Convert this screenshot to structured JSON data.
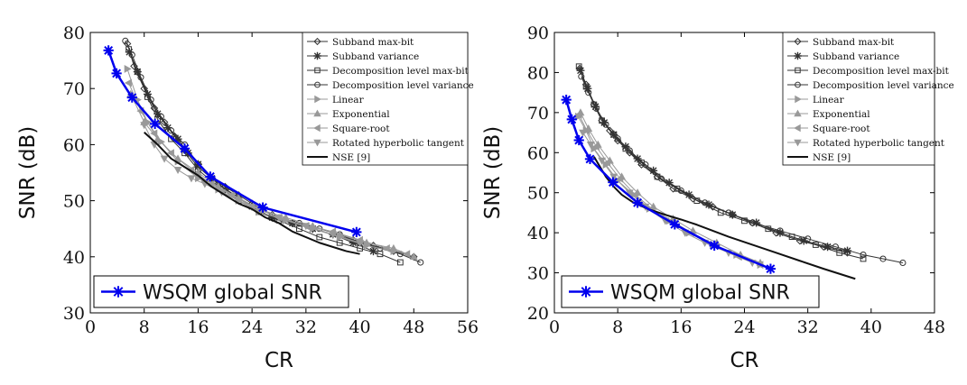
{
  "chart_data": [
    {
      "type": "line",
      "xlabel": "CR",
      "ylabel": "SNR (dB)",
      "xlim": [
        0,
        56
      ],
      "ylim": [
        30,
        80
      ],
      "xticks": [
        0,
        8,
        16,
        24,
        32,
        40,
        48,
        56
      ],
      "yticks": [
        30,
        40,
        50,
        60,
        70,
        80
      ],
      "legend_position": "top-right",
      "series": [
        {
          "name": "Subband max-bit",
          "color": "#333333",
          "width": 1,
          "marker": "diamond",
          "x": [
            5.5,
            6.5,
            8,
            9.5,
            11,
            12.5,
            14,
            16,
            18,
            20,
            22,
            24,
            27,
            30,
            33,
            36,
            39,
            42,
            45,
            48
          ],
          "y": [
            78,
            74,
            70,
            66.5,
            64,
            61.5,
            59,
            56,
            54,
            52.5,
            51,
            49.5,
            47.5,
            46,
            45,
            44,
            43,
            42,
            41,
            40
          ]
        },
        {
          "name": "Subband variance",
          "color": "#333333",
          "width": 1,
          "marker": "star",
          "x": [
            5.8,
            7,
            8.5,
            10,
            11.5,
            13,
            14.5,
            16,
            18,
            20,
            22,
            24,
            27,
            30,
            33,
            36,
            39,
            42
          ],
          "y": [
            76.5,
            73,
            69,
            65.5,
            63,
            61,
            58.5,
            56.5,
            54,
            52,
            50.5,
            49,
            47,
            46,
            45,
            44,
            42.5,
            41
          ]
        },
        {
          "name": "Decomposition level max-bit",
          "color": "#333333",
          "width": 1,
          "marker": "square",
          "x": [
            5.7,
            7,
            8.5,
            10,
            12,
            14,
            16,
            19,
            22,
            25,
            28,
            31,
            34,
            37,
            40,
            43,
            46
          ],
          "y": [
            77,
            73,
            68.5,
            64.5,
            61,
            58.5,
            55.5,
            52.5,
            50,
            48,
            46.5,
            45,
            43.5,
            42.5,
            41.5,
            40.5,
            39
          ]
        },
        {
          "name": "Decomposition level variance",
          "color": "#333333",
          "width": 1,
          "marker": "circle",
          "x": [
            5.2,
            6.2,
            7.5,
            9,
            10.5,
            12,
            14,
            16,
            19,
            22,
            25,
            28,
            31,
            34,
            37,
            40,
            43,
            46,
            49
          ],
          "y": [
            78.5,
            76,
            72,
            68,
            65,
            62.5,
            60,
            56.5,
            53,
            50.5,
            48.5,
            47,
            46,
            45,
            44,
            42.5,
            41.5,
            40.5,
            39
          ]
        },
        {
          "name": "Linear",
          "color": "#999999",
          "width": 1,
          "marker": "tri-right",
          "x": [
            5.5,
            7,
            8.5,
            10.5,
            13,
            16,
            19,
            22,
            25,
            29,
            33,
            37,
            41,
            45
          ],
          "y": [
            73.5,
            68,
            64,
            60.5,
            57,
            54,
            52,
            50,
            48,
            46.5,
            45,
            43.5,
            42,
            41
          ]
        },
        {
          "name": "Exponential",
          "color": "#999999",
          "width": 1,
          "marker": "tri-up",
          "x": [
            6,
            8,
            10,
            13,
            16,
            19,
            22,
            25,
            29,
            33,
            37,
            41,
            45,
            48
          ],
          "y": [
            69,
            64,
            61,
            57.5,
            55,
            52.5,
            50.5,
            48.5,
            47,
            45.5,
            44,
            42.5,
            41.5,
            40
          ]
        },
        {
          "name": "Square-root",
          "color": "#999999",
          "width": 1,
          "marker": "tri-left",
          "x": [
            5.7,
            7.5,
            9.5,
            12,
            15,
            18,
            21,
            24,
            28,
            32,
            36,
            40,
            44,
            47
          ],
          "y": [
            71,
            66,
            62,
            58.5,
            55.5,
            53,
            51,
            49,
            47,
            45.5,
            44.5,
            43,
            41.5,
            40.5
          ]
        },
        {
          "name": "Rotated hyperbolic tangent",
          "color": "#999999",
          "width": 1,
          "marker": "tri-down",
          "x": [
            8,
            9.5,
            11,
            13,
            15,
            17,
            19.5,
            22,
            25,
            28,
            32,
            36,
            40
          ],
          "y": [
            63.5,
            60,
            57.5,
            55.5,
            54,
            53,
            51.5,
            50,
            48.5,
            47,
            45.5,
            44,
            42.5
          ]
        },
        {
          "name": "NSE [9]",
          "color": "#111111",
          "width": 2,
          "marker": "none",
          "x": [
            8,
            10,
            12,
            14,
            16,
            18,
            20,
            22,
            24,
            26,
            28,
            30,
            34,
            38,
            40
          ],
          "y": [
            62.2,
            60,
            57.5,
            56,
            54.5,
            52.5,
            51,
            49.5,
            48.5,
            47,
            46,
            44.5,
            42.5,
            41,
            40.5
          ]
        },
        {
          "name": "WSQM global SNR",
          "color": "#0000ee",
          "width": 2.5,
          "marker": "star",
          "x": [
            2.7,
            3.9,
            6.2,
            9.6,
            14,
            17.8,
            25.6,
            39.5
          ],
          "y": [
            76.8,
            72.7,
            68.4,
            63.7,
            59.3,
            54.3,
            48.8,
            44.4
          ]
        }
      ]
    },
    {
      "type": "line",
      "xlabel": "CR",
      "ylabel": "SNR (dB)",
      "xlim": [
        0,
        48
      ],
      "ylim": [
        20,
        90
      ],
      "xticks": [
        0,
        8,
        16,
        24,
        32,
        40,
        48
      ],
      "yticks": [
        20,
        30,
        40,
        50,
        60,
        70,
        80,
        90
      ],
      "legend_position": "top-right",
      "series": [
        {
          "name": "Subband max-bit",
          "color": "#333333",
          "width": 1,
          "marker": "diamond",
          "x": [
            3.2,
            4,
            5,
            6,
            7,
            8,
            9.5,
            11,
            13,
            15,
            17.5,
            20,
            22.5,
            25,
            28,
            31,
            34,
            37
          ],
          "y": [
            81,
            77,
            72,
            68,
            65.5,
            63,
            60,
            57,
            54,
            51,
            48.5,
            46.5,
            44.5,
            42.5,
            40,
            38,
            36.5,
            35
          ]
        },
        {
          "name": "Subband variance",
          "color": "#333333",
          "width": 1,
          "marker": "star",
          "x": [
            3.3,
            4.2,
            5.2,
            6.3,
            7.5,
            9,
            10.5,
            12.5,
            14.5,
            17,
            19.5,
            22.5,
            25.5,
            28.5,
            31.5,
            34.5,
            37
          ],
          "y": [
            80.5,
            76,
            71.5,
            67.5,
            64.5,
            61.5,
            58.5,
            55.5,
            52.5,
            49.5,
            47,
            44.5,
            42.5,
            40,
            38,
            36.5,
            35.5
          ]
        },
        {
          "name": "Decomposition level max-bit",
          "color": "#333333",
          "width": 1,
          "marker": "square",
          "x": [
            3.1,
            4,
            5,
            6,
            7.5,
            9,
            11,
            13,
            15.5,
            18,
            21,
            24,
            27,
            30,
            33,
            36,
            39
          ],
          "y": [
            81.5,
            76.5,
            72,
            68,
            64.5,
            61,
            57.5,
            54,
            51,
            48,
            45,
            43,
            41,
            39,
            37,
            35,
            33.5
          ]
        },
        {
          "name": "Decomposition level variance",
          "color": "#333333",
          "width": 1,
          "marker": "circle",
          "x": [
            3.4,
            4.3,
            5.3,
            6.5,
            8,
            9.5,
            11.5,
            13.5,
            16,
            19,
            22,
            25,
            28.5,
            32,
            35.5,
            39,
            41.5,
            44
          ],
          "y": [
            79,
            75,
            71,
            67,
            63.5,
            60.5,
            57,
            53.5,
            50.5,
            47.5,
            45,
            42.5,
            40.5,
            38.5,
            36.5,
            34.5,
            33.5,
            32.5
          ]
        },
        {
          "name": "Linear",
          "color": "#999999",
          "width": 1,
          "marker": "tri-right",
          "x": [
            3,
            4,
            5,
            6.5,
            8,
            10,
            12,
            14.5,
            17,
            20,
            23,
            26
          ],
          "y": [
            69,
            65.5,
            61,
            57,
            53,
            49.5,
            46,
            43,
            40,
            37,
            34.5,
            32
          ]
        },
        {
          "name": "Exponential",
          "color": "#999999",
          "width": 1,
          "marker": "tri-up",
          "x": [
            3.3,
            4.3,
            5.5,
            7,
            8.5,
            10.5,
            12.5,
            15,
            17.5,
            20.5,
            23.5,
            26
          ],
          "y": [
            70,
            66,
            62,
            58,
            54,
            50,
            46.5,
            43.5,
            40.5,
            37.5,
            34.5,
            32.5
          ]
        },
        {
          "name": "Square-root",
          "color": "#999999",
          "width": 1,
          "marker": "tri-left",
          "x": [
            3.1,
            4.1,
            5.3,
            6.7,
            8.3,
            10.2,
            12.3,
            14.8,
            17.3,
            20.3,
            23.3,
            26
          ],
          "y": [
            69.5,
            65.5,
            61.5,
            57.5,
            53.5,
            49.5,
            46,
            43,
            40,
            37,
            34,
            32
          ]
        },
        {
          "name": "Rotated hyperbolic tangent",
          "color": "#999999",
          "width": 1,
          "marker": "tri-down",
          "x": [
            3.6,
            4.6,
            6,
            7.5,
            9.5,
            11.5,
            14,
            16.5,
            19,
            22,
            25
          ],
          "y": [
            65,
            62,
            58,
            54,
            50,
            46.5,
            43,
            40,
            37.5,
            35,
            32.5
          ]
        },
        {
          "name": "NSE [9]",
          "color": "#111111",
          "width": 2,
          "marker": "none",
          "x": [
            5,
            6.5,
            7.5,
            8.5,
            10,
            12,
            14,
            16,
            18,
            20,
            22,
            25,
            28,
            31,
            34,
            38
          ],
          "y": [
            59,
            54,
            51.5,
            49.5,
            47.5,
            45.8,
            44.5,
            43.3,
            42,
            40.5,
            39,
            37,
            35,
            33,
            31,
            28.5
          ]
        },
        {
          "name": "WSQM global SNR",
          "color": "#0000ee",
          "width": 2.5,
          "marker": "star",
          "x": [
            1.5,
            2.2,
            3.1,
            4.5,
            7.4,
            10.5,
            15.2,
            20.2,
            27.3
          ],
          "y": [
            73.2,
            68.3,
            63.1,
            58.4,
            52.6,
            47.5,
            42.1,
            36.8,
            31.0
          ]
        }
      ]
    }
  ]
}
